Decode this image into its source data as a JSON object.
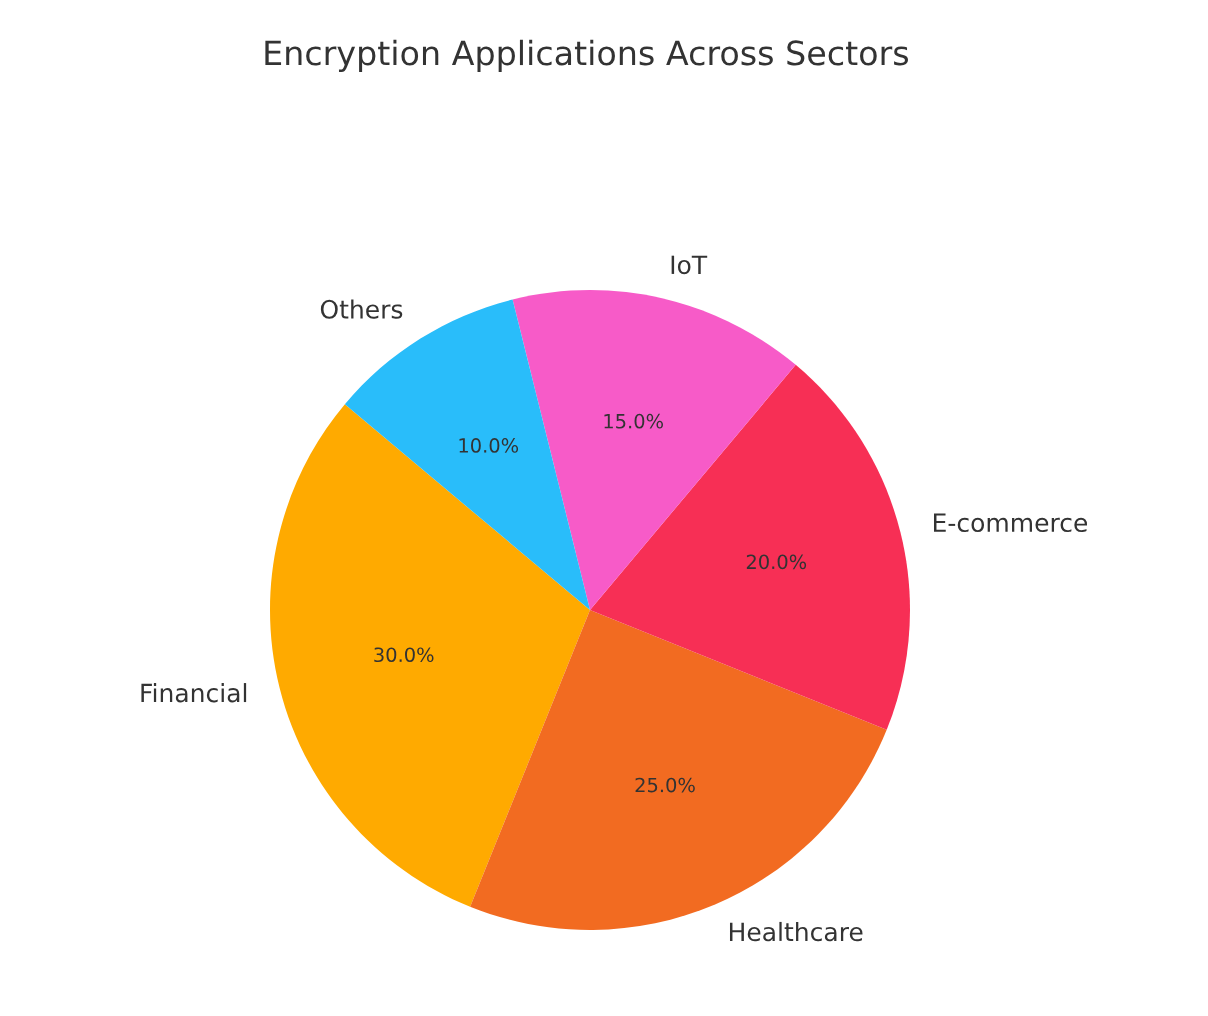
{
  "chart_data": {
    "type": "pie",
    "title": "Encryption Applications Across Sectors",
    "categories": [
      "Financial",
      "Healthcare",
      "E-commerce",
      "IoT",
      "Others"
    ],
    "values": [
      30,
      25,
      20,
      15,
      10
    ],
    "colors": [
      "#ffaa00",
      "#f26b21",
      "#f72f55",
      "#f75bc8",
      "#29bdfa"
    ],
    "value_labels": [
      "30.0%",
      "25.0%",
      "20.0%",
      "15.0%",
      "10.0%"
    ]
  }
}
